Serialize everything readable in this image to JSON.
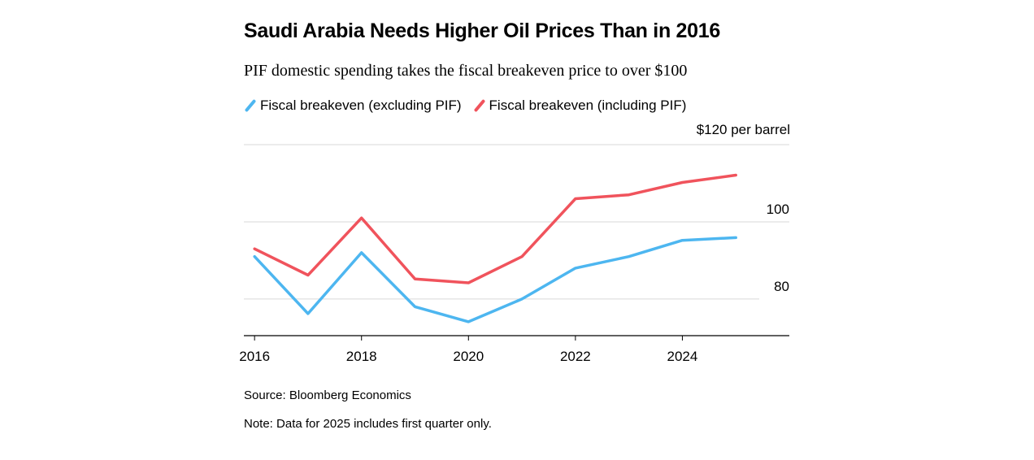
{
  "title": "Saudi Arabia Needs Higher Oil Prices Than in 2016",
  "subtitle": "PIF domestic spending takes the fiscal breakeven price to over $100",
  "source": "Source: Bloomberg Economics",
  "note": "Note: Data for 2025 includes first quarter only.",
  "chart_data": {
    "type": "line",
    "title": "Saudi Arabia Needs Higher Oil Prices Than in 2016",
    "subtitle": "PIF domestic spending takes the fiscal breakeven price to over $100",
    "xlabel": "",
    "ylabel": "$ per barrel",
    "unit_label": "$120 per barrel",
    "x": [
      2016,
      2017,
      2018,
      2019,
      2020,
      2021,
      2022,
      2023,
      2024,
      2025
    ],
    "x_ticks": [
      "2016",
      "2018",
      "2020",
      "2022",
      "2024"
    ],
    "y_ticks": [
      {
        "value": 80,
        "label": "80"
      },
      {
        "value": 100,
        "label": "100"
      },
      {
        "value": 120,
        "label": "$120 per barrel"
      }
    ],
    "ylim": [
      70.5,
      120
    ],
    "xlim": [
      2015.8,
      2026.0
    ],
    "grid": true,
    "legend_position": "top-left",
    "series": [
      {
        "name": "Fiscal breakeven (excluding PIF)",
        "color": "#4db6f0",
        "values": [
          91,
          76.2,
          92,
          78,
          74.1,
          80,
          88,
          91,
          95.2,
          95.9
        ]
      },
      {
        "name": "Fiscal breakeven (including PIF)",
        "color": "#f0535c",
        "values": [
          93,
          86.2,
          101,
          85.2,
          84.2,
          91,
          106,
          107,
          110.2,
          112.1
        ]
      }
    ]
  }
}
